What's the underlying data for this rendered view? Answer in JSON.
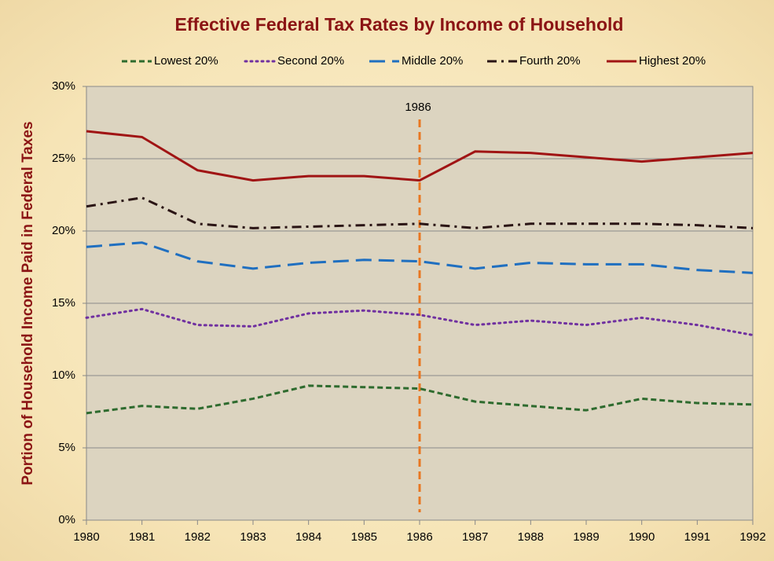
{
  "chart_data": {
    "type": "line",
    "title": "Effective Federal Tax Rates by Income of Household",
    "y_label": "Portion of Household Income  Paid in Federal Taxes",
    "x": [
      1980,
      1981,
      1982,
      1983,
      1984,
      1985,
      1986,
      1987,
      1988,
      1989,
      1990,
      1991,
      1992
    ],
    "xlim": [
      1980,
      1992
    ],
    "xticks": [
      1980,
      1981,
      1982,
      1983,
      1984,
      1985,
      1986,
      1987,
      1988,
      1989,
      1990,
      1991,
      1992
    ],
    "ylim": [
      0,
      30
    ],
    "yticks": [
      {
        "value": 0,
        "label": "0%"
      },
      {
        "value": 5,
        "label": "5%"
      },
      {
        "value": 10,
        "label": "10%"
      },
      {
        "value": 15,
        "label": "15%"
      },
      {
        "value": 20,
        "label": "20%"
      },
      {
        "value": 25,
        "label": "25%"
      },
      {
        "value": 30,
        "label": "30%"
      }
    ],
    "grid": true,
    "legend": "top",
    "series": [
      {
        "name": "Lowest 20%",
        "color": "#2e6b2e",
        "style": "dashed",
        "values": [
          7.4,
          7.9,
          7.7,
          8.4,
          9.3,
          9.2,
          9.1,
          8.2,
          7.9,
          7.6,
          8.4,
          8.1,
          8.0
        ]
      },
      {
        "name": "Second 20%",
        "color": "#7030a0",
        "style": "dotted",
        "values": [
          14.0,
          14.6,
          13.5,
          13.4,
          14.3,
          14.5,
          14.2,
          13.5,
          13.8,
          13.5,
          14.0,
          13.5,
          12.8
        ]
      },
      {
        "name": "Middle 20%",
        "color": "#1f6fc0",
        "style": "long-dash",
        "values": [
          18.9,
          19.2,
          17.9,
          17.4,
          17.8,
          18.0,
          17.9,
          17.4,
          17.8,
          17.7,
          17.7,
          17.3,
          17.1
        ]
      },
      {
        "name": "Fourth 20%",
        "color": "#2a1414",
        "style": "dash-dot",
        "values": [
          21.7,
          22.3,
          20.5,
          20.2,
          20.3,
          20.4,
          20.5,
          20.2,
          20.5,
          20.5,
          20.5,
          20.4,
          20.2
        ]
      },
      {
        "name": "Highest 20%",
        "color": "#a01414",
        "style": "solid",
        "values": [
          26.9,
          26.5,
          24.2,
          23.5,
          23.8,
          23.8,
          23.5,
          25.5,
          25.4,
          25.1,
          24.8,
          25.1,
          25.4
        ]
      }
    ],
    "annotations": [
      {
        "label": "1986",
        "x": 1986,
        "color": "#e87722"
      }
    ]
  }
}
